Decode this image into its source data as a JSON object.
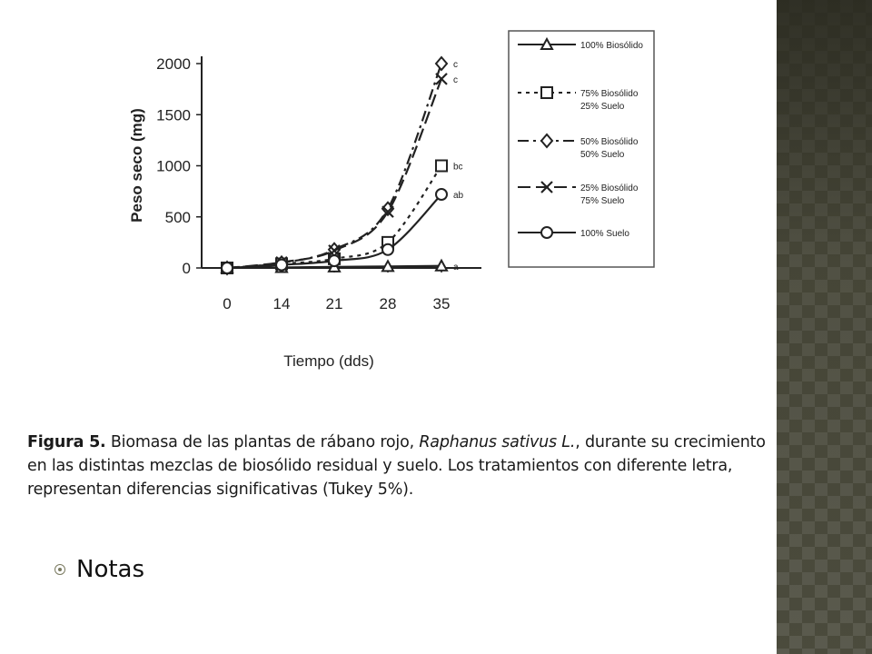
{
  "slide": {
    "caption": {
      "label": "Figura 5.",
      "text_before": " Biomasa de las plantas de rábano rojo, ",
      "species": "Raphanus sativus L.",
      "text_after": ", durante su crecimiento en las distintas mezclas de biosólido residual y suelo. Los tratamientos con diferente letra, representan diferencias significativas (Tukey 5%)."
    },
    "bullet": {
      "text": "Notas",
      "icon": "target-bullet-icon"
    },
    "side_panel_color": "#4a4a3c"
  },
  "chart_data": {
    "type": "line",
    "title": "",
    "xlabel": "Tiempo (dds)",
    "ylabel": "Peso seco (mg)",
    "categories": [
      "0",
      "14",
      "21",
      "28",
      "35"
    ],
    "ylim": [
      0,
      2000
    ],
    "yticks": [
      "0",
      "500",
      "1000",
      "1500",
      "2000"
    ],
    "grid": false,
    "legend_position": "right",
    "series": [
      {
        "name": "100% Biosólido",
        "values": [
          0,
          5,
          10,
          15,
          20
        ],
        "marker": "triangle",
        "dash": "solid",
        "letter": "a"
      },
      {
        "name": "75% Biosólido 25% Suelo",
        "values": [
          0,
          40,
          90,
          250,
          1000
        ],
        "marker": "square",
        "dash": "dotted",
        "letter": "bc"
      },
      {
        "name": "50% Biosólido 50% Suelo",
        "values": [
          0,
          50,
          180,
          580,
          2000
        ],
        "marker": "diamond",
        "dash": "dashdot",
        "letter": "c"
      },
      {
        "name": "25% Biosólido 75% Suelo",
        "values": [
          0,
          55,
          170,
          550,
          1850
        ],
        "marker": "x",
        "dash": "longdash",
        "letter": "c"
      },
      {
        "name": "100% Suelo",
        "values": [
          0,
          30,
          70,
          180,
          720
        ],
        "marker": "circle",
        "dash": "solid",
        "letter": "ab"
      }
    ]
  }
}
